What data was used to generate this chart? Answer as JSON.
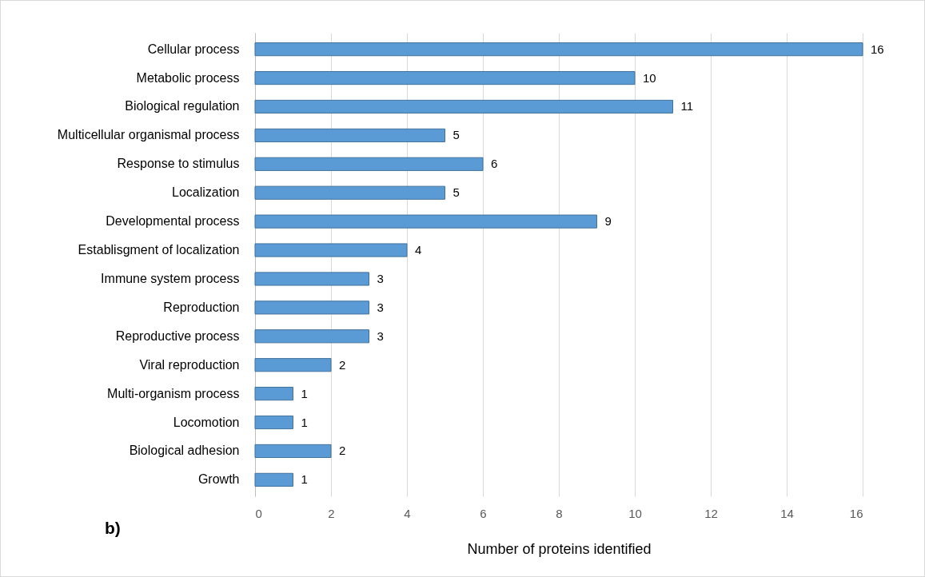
{
  "chart_data": {
    "type": "bar",
    "orientation": "horizontal",
    "categories": [
      "Cellular process",
      "Metabolic process",
      "Biological regulation",
      "Multicellular organismal process",
      "Response to stimulus",
      "Localization",
      "Developmental process",
      "Establisgment of localization",
      "Immune system process",
      "Reproduction",
      "Reproductive process",
      "Viral reproduction",
      "Multi-organism process",
      "Locomotion",
      "Biological adhesion",
      "Growth"
    ],
    "values": [
      16,
      10,
      11,
      5,
      6,
      5,
      9,
      4,
      3,
      3,
      3,
      2,
      1,
      1,
      2,
      1
    ],
    "color": "#5b9bd5",
    "xlim": [
      0,
      16
    ],
    "xticks": [
      0,
      2,
      4,
      6,
      8,
      10,
      12,
      14,
      16
    ],
    "xlabel": "Number  of proteins identified",
    "annotations": [
      "b)"
    ],
    "data_labels": true,
    "grid": "x"
  }
}
